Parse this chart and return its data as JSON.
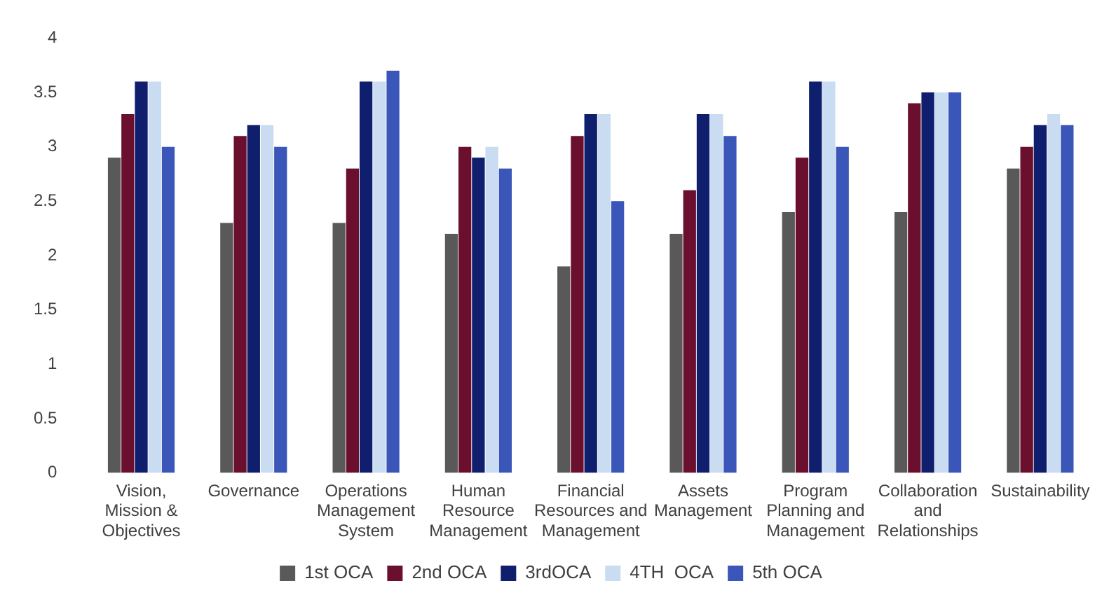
{
  "chart_data": {
    "type": "bar",
    "categories": [
      "Vision, Mission & Objectives",
      "Governance",
      "Operations Management System",
      "Human Resource Management",
      "Financial Resources and Management",
      "Assets Management",
      "Program Planning and Management",
      "Collaboration and Relationships",
      "Sustainability"
    ],
    "series": [
      {
        "name": "1st OCA",
        "color": "#595959",
        "values": [
          2.9,
          2.3,
          2.3,
          2.2,
          1.9,
          2.2,
          2.4,
          2.4,
          2.8
        ]
      },
      {
        "name": "2nd OCA",
        "color": "#6b0f2e",
        "values": [
          3.3,
          3.1,
          2.8,
          3.0,
          3.1,
          2.6,
          2.9,
          3.4,
          3.0
        ]
      },
      {
        "name": "3rdOCA",
        "color": "#0f1f6e",
        "values": [
          3.6,
          3.2,
          3.6,
          2.9,
          3.3,
          3.3,
          3.6,
          3.5,
          3.2
        ]
      },
      {
        "name": "4TH  OCA",
        "color": "#c9dcf2",
        "values": [
          3.6,
          3.2,
          3.6,
          3.0,
          3.3,
          3.3,
          3.6,
          3.5,
          3.3
        ]
      },
      {
        "name": "5th OCA",
        "color": "#3a56b8",
        "values": [
          3.0,
          3.0,
          3.7,
          2.8,
          2.5,
          3.1,
          3.0,
          3.5,
          3.2
        ]
      }
    ],
    "ylim": [
      0,
      4
    ],
    "yticks": [
      0,
      0.5,
      1,
      1.5,
      2,
      2.5,
      3,
      3.5,
      4
    ],
    "grid": false,
    "legend": "bottom"
  }
}
